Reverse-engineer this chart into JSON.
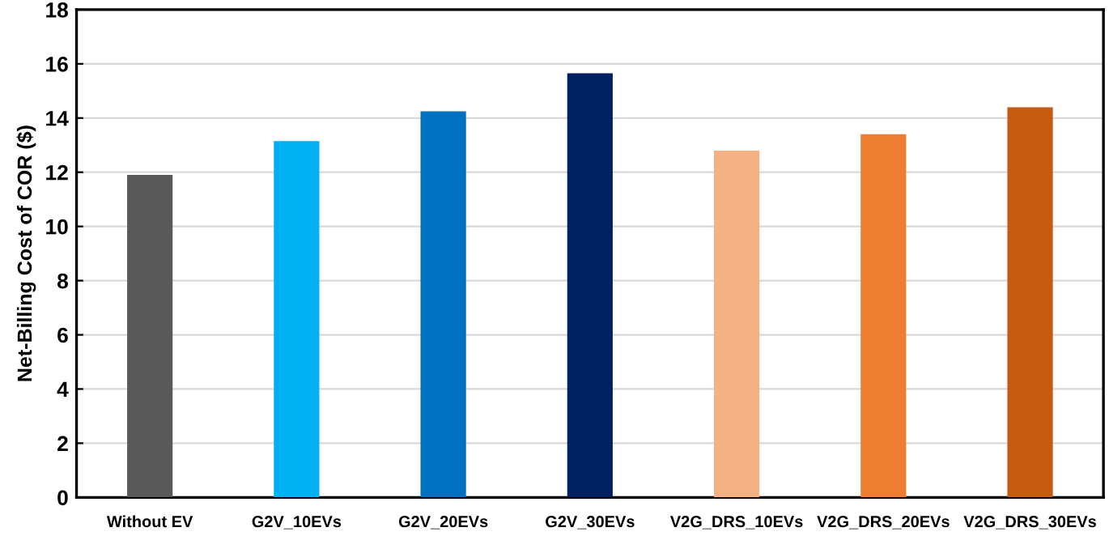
{
  "chart_data": {
    "type": "bar",
    "ylabel": "Net-Billing Cost of COR ($)",
    "categories": [
      "Without EV",
      "G2V_10EVs",
      "G2V_20EVs",
      "G2V_30EVs",
      "V2G_DRS_10EVs",
      "V2G_DRS_20EVs",
      "V2G_DRS_30EVs"
    ],
    "values": [
      11.9,
      13.15,
      14.25,
      15.65,
      12.8,
      13.4,
      14.4
    ],
    "colors": [
      "#595959",
      "#00b0f0",
      "#0070c0",
      "#002060",
      "#f4b183",
      "#ed7d31",
      "#c55a11"
    ],
    "ylim": [
      0,
      18
    ],
    "yticks": [
      0,
      2,
      4,
      6,
      8,
      10,
      12,
      14,
      16,
      18
    ],
    "grid": "y",
    "legend": false
  }
}
